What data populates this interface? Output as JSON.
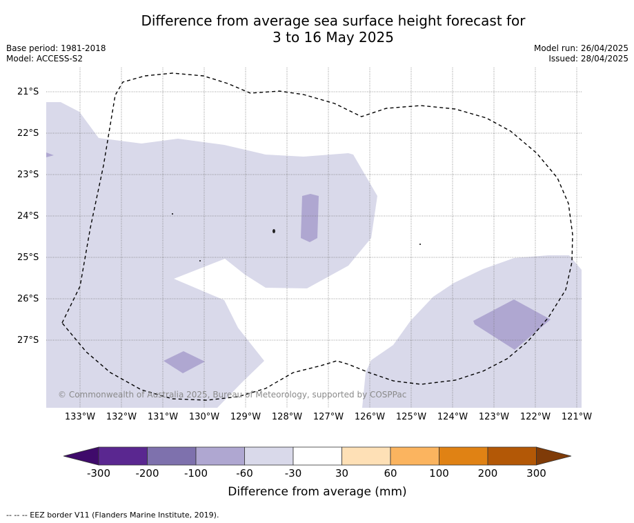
{
  "title_line1": "Difference from average sea surface height forecast for",
  "title_line2": "3 to 16 May 2025",
  "base_period": "Base period: 1981-2018",
  "model": "Model: ACCESS-S2",
  "model_run": "Model run: 26/04/2025",
  "issued": "Issued: 28/04/2025",
  "lat_labels": [
    "21°S",
    "22°S",
    "23°S",
    "24°S",
    "25°S",
    "26°S",
    "27°S"
  ],
  "lon_labels": [
    "133°W",
    "132°W",
    "131°W",
    "130°W",
    "129°W",
    "128°W",
    "127°W",
    "126°W",
    "125°W",
    "124°W",
    "123°W",
    "122°W",
    "121°W"
  ],
  "copyright": "© Commonwealth of Australia 2025, Bureau of Meteorology, supported by COSPPac",
  "colorbar": {
    "tick_labels": [
      "-300",
      "-200",
      "-100",
      "-60",
      "-30",
      "30",
      "60",
      "100",
      "200",
      "300"
    ],
    "label": "Difference from average (mm)",
    "colors": [
      "#3f0a6b",
      "#5a2790",
      "#7e71ad",
      "#afa7d1",
      "#d9d9ea",
      "#ffffff",
      "#fee0b6",
      "#fbb45f",
      "#e08214",
      "#b35806",
      "#7f3b08"
    ]
  },
  "footnote": "--  --  -- EEZ border V11 (Flanders Marine Institute, 2019)."
}
